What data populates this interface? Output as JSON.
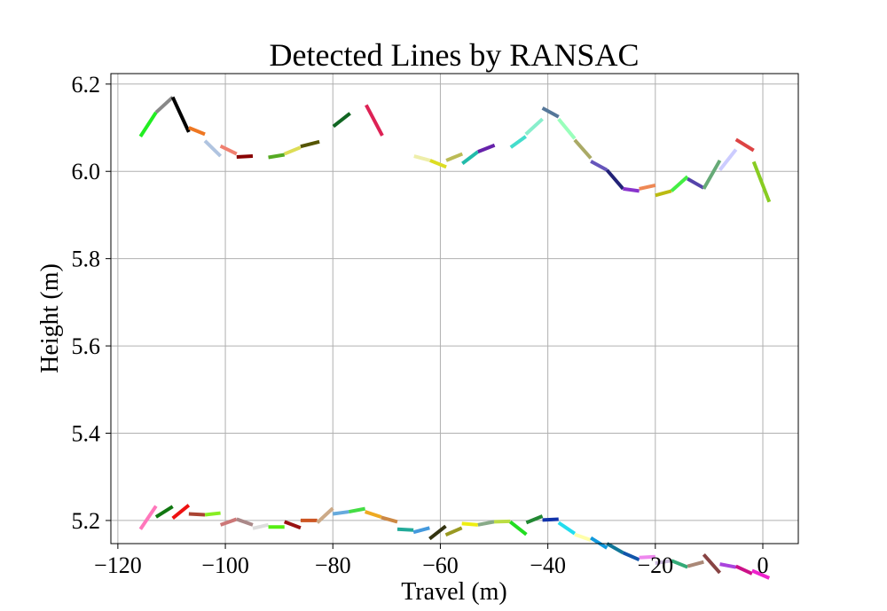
{
  "chart_data": {
    "type": "line",
    "title": "Detected Lines by RANSAC",
    "xlabel": "Travel (m)",
    "ylabel": "Height (m)",
    "xlim": [
      -121.3,
      6.6
    ],
    "ylim": [
      5.147,
      6.224
    ],
    "xticks": [
      -120,
      -100,
      -80,
      -60,
      -40,
      -20,
      0
    ],
    "xtick_labels": [
      "−120",
      "−100",
      "−80",
      "−60",
      "−40",
      "−20",
      "0"
    ],
    "yticks": [
      5.2,
      5.4,
      5.6,
      5.8,
      6.0,
      6.2
    ],
    "ytick_labels": [
      "5.2",
      "5.4",
      "5.6",
      "5.8",
      "6.0",
      "6.2"
    ],
    "grid": true,
    "segments": [
      {
        "x": [
          -115.8,
          -112.9
        ],
        "y": [
          6.08,
          6.135
        ],
        "color": "#22ee22"
      },
      {
        "x": [
          -112.9,
          -109.8
        ],
        "y": [
          6.135,
          6.17
        ],
        "color": "#888888"
      },
      {
        "x": [
          -109.8,
          -106.8
        ],
        "y": [
          6.17,
          6.09
        ],
        "color": "#000000"
      },
      {
        "x": [
          -106.8,
          -103.8
        ],
        "y": [
          6.1,
          6.085
        ],
        "color": "#ee7722"
      },
      {
        "x": [
          -103.8,
          -100.9
        ],
        "y": [
          6.07,
          6.035
        ],
        "color": "#b0c4e0"
      },
      {
        "x": [
          -100.9,
          -97.9
        ],
        "y": [
          6.058,
          6.04
        ],
        "color": "#f08070"
      },
      {
        "x": [
          -97.9,
          -94.9
        ],
        "y": [
          6.033,
          6.035
        ],
        "color": "#880000"
      },
      {
        "x": [
          -92.0,
          -89.0
        ],
        "y": [
          6.032,
          6.038
        ],
        "color": "#55aa22"
      },
      {
        "x": [
          -89.0,
          -86.0
        ],
        "y": [
          6.04,
          6.055
        ],
        "color": "#dddd55"
      },
      {
        "x": [
          -86.0,
          -82.5
        ],
        "y": [
          6.057,
          6.068
        ],
        "color": "#555500"
      },
      {
        "x": [
          -79.9,
          -76.8
        ],
        "y": [
          6.103,
          6.133
        ],
        "color": "#116622"
      },
      {
        "x": [
          -73.8,
          -70.8
        ],
        "y": [
          6.152,
          6.082
        ],
        "color": "#dd2255"
      },
      {
        "x": [
          -64.9,
          -61.9
        ],
        "y": [
          6.035,
          6.025
        ],
        "color": "#eeeeaa"
      },
      {
        "x": [
          -61.9,
          -58.9
        ],
        "y": [
          6.025,
          6.01
        ],
        "color": "#dddd22"
      },
      {
        "x": [
          -58.9,
          -55.9
        ],
        "y": [
          6.025,
          6.04
        ],
        "color": "#bbbb55"
      },
      {
        "x": [
          -55.9,
          -53.0
        ],
        "y": [
          6.018,
          6.045
        ],
        "color": "#22bbaa"
      },
      {
        "x": [
          -53.0,
          -49.9
        ],
        "y": [
          6.045,
          6.06
        ],
        "color": "#6622aa"
      },
      {
        "x": [
          -46.9,
          -44.1
        ],
        "y": [
          6.055,
          6.08
        ],
        "color": "#44ddcc"
      },
      {
        "x": [
          -44.1,
          -41.0
        ],
        "y": [
          6.085,
          6.12
        ],
        "color": "#88eecc"
      },
      {
        "x": [
          -41.0,
          -38.0
        ],
        "y": [
          6.145,
          6.125
        ],
        "color": "#557799"
      },
      {
        "x": [
          -38.0,
          -35.0
        ],
        "y": [
          6.12,
          6.075
        ],
        "color": "#99ffbb"
      },
      {
        "x": [
          -35.0,
          -32.0
        ],
        "y": [
          6.072,
          6.03
        ],
        "color": "#aaaa66"
      },
      {
        "x": [
          -32.0,
          -29.0
        ],
        "y": [
          6.023,
          6.003
        ],
        "color": "#6655bb"
      },
      {
        "x": [
          -29.0,
          -26.0
        ],
        "y": [
          6.003,
          5.96
        ],
        "color": "#222277"
      },
      {
        "x": [
          -26.0,
          -23.0
        ],
        "y": [
          5.96,
          5.955
        ],
        "color": "#8833cc"
      },
      {
        "x": [
          -23.0,
          -20.0
        ],
        "y": [
          5.96,
          5.968
        ],
        "color": "#ee8855"
      },
      {
        "x": [
          -20.0,
          -17.0
        ],
        "y": [
          5.945,
          5.955
        ],
        "color": "#bbbb11"
      },
      {
        "x": [
          -17.0,
          -14.0
        ],
        "y": [
          5.955,
          5.988
        ],
        "color": "#44ee44"
      },
      {
        "x": [
          -14.0,
          -11.0
        ],
        "y": [
          5.983,
          5.962
        ],
        "color": "#5544aa"
      },
      {
        "x": [
          -11.0,
          -8.0
        ],
        "y": [
          5.96,
          6.025
        ],
        "color": "#66aa77"
      },
      {
        "x": [
          -8.0,
          -5.0
        ],
        "y": [
          6.003,
          6.05
        ],
        "color": "#ccccff"
      },
      {
        "x": [
          -5.0,
          -1.7
        ],
        "y": [
          6.073,
          6.048
        ],
        "color": "#dd4444"
      },
      {
        "x": [
          -1.7,
          1.2
        ],
        "y": [
          6.022,
          5.93
        ],
        "color": "#88cc22"
      },
      {
        "x": [
          -115.8,
          -112.9
        ],
        "y": [
          5.18,
          5.233
        ],
        "color": "#ff77bb"
      },
      {
        "x": [
          -112.9,
          -109.8
        ],
        "y": [
          5.208,
          5.232
        ],
        "color": "#117711"
      },
      {
        "x": [
          -109.8,
          -106.8
        ],
        "y": [
          5.205,
          5.235
        ],
        "color": "#ee1111"
      },
      {
        "x": [
          -106.8,
          -103.8
        ],
        "y": [
          5.215,
          5.213
        ],
        "color": "#aa4433"
      },
      {
        "x": [
          -103.8,
          -100.9
        ],
        "y": [
          5.213,
          5.217
        ],
        "color": "#88ee22"
      },
      {
        "x": [
          -100.9,
          -97.9
        ],
        "y": [
          5.19,
          5.203
        ],
        "color": "#cc7777"
      },
      {
        "x": [
          -97.9,
          -94.9
        ],
        "y": [
          5.203,
          5.19
        ],
        "color": "#aa8888"
      },
      {
        "x": [
          -94.9,
          -92.0
        ],
        "y": [
          5.182,
          5.19
        ],
        "color": "#dddddd"
      },
      {
        "x": [
          -92.0,
          -89.0
        ],
        "y": [
          5.185,
          5.185
        ],
        "color": "#55ee11"
      },
      {
        "x": [
          -89.0,
          -86.0
        ],
        "y": [
          5.197,
          5.183
        ],
        "color": "#991111"
      },
      {
        "x": [
          -86.0,
          -82.9
        ],
        "y": [
          5.2,
          5.2
        ],
        "color": "#cc5522"
      },
      {
        "x": [
          -82.9,
          -80.0
        ],
        "y": [
          5.195,
          5.228
        ],
        "color": "#ccaa88"
      },
      {
        "x": [
          -80.0,
          -77.0
        ],
        "y": [
          5.215,
          5.22
        ],
        "color": "#66aadd"
      },
      {
        "x": [
          -77.0,
          -74.0
        ],
        "y": [
          5.22,
          5.227
        ],
        "color": "#44dd44"
      },
      {
        "x": [
          -74.0,
          -71.0
        ],
        "y": [
          5.22,
          5.208
        ],
        "color": "#eeaa22"
      },
      {
        "x": [
          -71.0,
          -68.0
        ],
        "y": [
          5.207,
          5.197
        ],
        "color": "#cc8844"
      },
      {
        "x": [
          -68.0,
          -65.0
        ],
        "y": [
          5.18,
          5.178
        ],
        "color": "#22aa99"
      },
      {
        "x": [
          -65.0,
          -62.0
        ],
        "y": [
          5.173,
          5.183
        ],
        "color": "#4499dd"
      },
      {
        "x": [
          -62.0,
          -59.0
        ],
        "y": [
          5.158,
          5.187
        ],
        "color": "#333311"
      },
      {
        "x": [
          -59.0,
          -56.0
        ],
        "y": [
          5.167,
          5.183
        ],
        "color": "#999922"
      },
      {
        "x": [
          -56.0,
          -53.0
        ],
        "y": [
          5.193,
          5.19
        ],
        "color": "#eeee11"
      },
      {
        "x": [
          -53.0,
          -50.0
        ],
        "y": [
          5.19,
          5.197
        ],
        "color": "#88aa88"
      },
      {
        "x": [
          -50.0,
          -47.0
        ],
        "y": [
          5.197,
          5.198
        ],
        "color": "#bbdd44"
      },
      {
        "x": [
          -47.0,
          -44.0
        ],
        "y": [
          5.197,
          5.168
        ],
        "color": "#22dd22"
      },
      {
        "x": [
          -44.0,
          -41.0
        ],
        "y": [
          5.195,
          5.21
        ],
        "color": "#228833"
      },
      {
        "x": [
          -41.0,
          -38.0
        ],
        "y": [
          5.201,
          5.203
        ],
        "color": "#1133aa"
      },
      {
        "x": [
          -38.0,
          -35.0
        ],
        "y": [
          5.195,
          5.17
        ],
        "color": "#22ddee"
      },
      {
        "x": [
          -35.0,
          -32.0
        ],
        "y": [
          5.168,
          5.155
        ],
        "color": "#ffffaa"
      },
      {
        "x": [
          -32.0,
          -29.0
        ],
        "y": [
          5.16,
          5.137
        ],
        "color": "#1199dd"
      },
      {
        "x": [
          -29.0,
          -26.0
        ],
        "y": [
          5.147,
          5.126
        ],
        "color": "#117799"
      },
      {
        "x": [
          -26.0,
          -23.0
        ],
        "y": [
          5.126,
          5.11
        ],
        "color": "#1155aa"
      },
      {
        "x": [
          -23.0,
          -20.0
        ],
        "y": [
          5.115,
          5.117
        ],
        "color": "#ee88ee"
      },
      {
        "x": [
          -20.0,
          -17.0
        ],
        "y": [
          5.102,
          5.108
        ],
        "color": "#ccbbdd"
      },
      {
        "x": [
          -17.0,
          -14.0
        ],
        "y": [
          5.108,
          5.093
        ],
        "color": "#33aa77"
      },
      {
        "x": [
          -14.0,
          -11.0
        ],
        "y": [
          5.095,
          5.105
        ],
        "color": "#aa8877"
      },
      {
        "x": [
          -11.0,
          -8.0
        ],
        "y": [
          5.122,
          5.08
        ],
        "color": "#884444"
      },
      {
        "x": [
          -8.0,
          -5.0
        ],
        "y": [
          5.1,
          5.093
        ],
        "color": "#aa44dd"
      },
      {
        "x": [
          -5.0,
          -2.0
        ],
        "y": [
          5.095,
          5.078
        ],
        "color": "#cc1188"
      },
      {
        "x": [
          -2.0,
          1.2
        ],
        "y": [
          5.085,
          5.068
        ],
        "color": "#ee22cc"
      }
    ]
  }
}
